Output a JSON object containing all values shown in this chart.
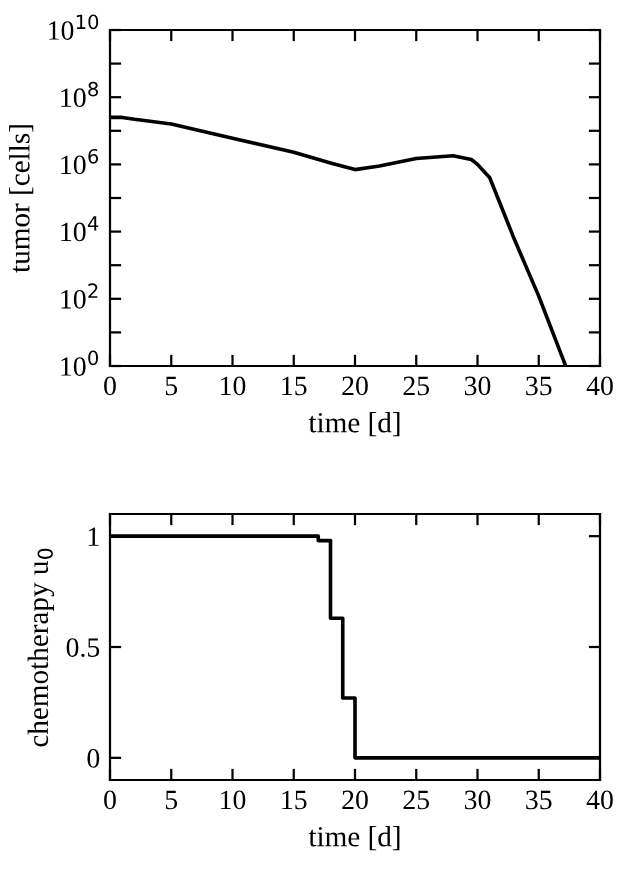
{
  "chart_data": [
    {
      "type": "line",
      "xlabel": "time [d]",
      "ylabel": "tumor [cells]",
      "log": "y",
      "grid": false,
      "legend": false,
      "marker": "none",
      "line_style": "solid",
      "x": [
        0,
        1,
        2,
        5,
        10,
        15,
        18,
        20,
        22,
        25,
        28,
        29.5,
        30,
        31,
        33,
        35,
        37.2
      ],
      "series": [
        {
          "color": "#000000",
          "values": [
            25000000.0,
            25000000.0,
            22000000.0,
            16000000.0,
            6000000.0,
            2300000.0,
            1100000.0,
            700000.0,
            900000.0,
            1500000.0,
            1800000.0,
            1400000.0,
            1000000.0,
            400000.0,
            6000.0,
            120.0,
            1
          ]
        }
      ],
      "xlim": [
        0,
        40
      ],
      "xticks": [
        0,
        5,
        10,
        15,
        20,
        25,
        30,
        35,
        40
      ],
      "ylim": [
        1,
        10000000000.0
      ],
      "yticks": [
        {
          "value": 1,
          "label": "10$^{0}$"
        },
        {
          "value": 10,
          "label": null
        },
        {
          "value": 100,
          "label": "10$^{2}$"
        },
        {
          "value": 1000,
          "label": null
        },
        {
          "value": 10000,
          "label": "10$^{4}$"
        },
        {
          "value": 100000,
          "label": null
        },
        {
          "value": 1000000,
          "label": "10$^{6}$"
        },
        {
          "value": 10000000,
          "label": null
        },
        {
          "value": 100000000,
          "label": "10$^{8}$"
        },
        {
          "value": 1000000000,
          "label": null
        },
        {
          "value": 10000000000,
          "label": "10$^{10}$"
        }
      ]
    },
    {
      "type": "step",
      "xlabel": "time [d]",
      "ylabel": "chemotherapy u$_{0}$",
      "grid": false,
      "legend": false,
      "marker": "none",
      "line_style": "solid",
      "x": [
        0,
        17,
        18,
        19,
        20,
        40
      ],
      "series": [
        {
          "color": "#000000",
          "values": [
            1,
            0.98,
            0.63,
            0.27,
            0,
            0
          ]
        }
      ],
      "xlim": [
        0,
        40
      ],
      "xticks": [
        0,
        5,
        10,
        15,
        20,
        25,
        30,
        35,
        40
      ],
      "ylim": [
        -0.1,
        1.1
      ],
      "yticks": [
        0,
        0.5,
        1
      ]
    }
  ]
}
